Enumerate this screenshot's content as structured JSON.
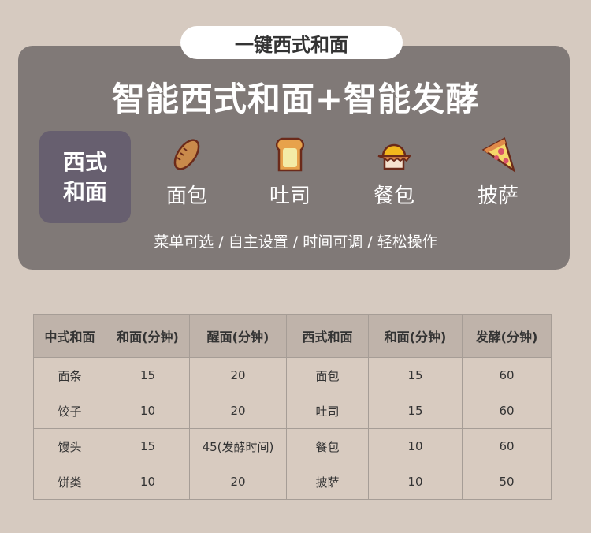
{
  "header": {
    "pill": "一键西式和面",
    "title": "智能西式和面+智能发酵"
  },
  "badge": {
    "line1": "西式",
    "line2": "和面"
  },
  "items": [
    {
      "label": "面包",
      "icon": "bread-icon"
    },
    {
      "label": "吐司",
      "icon": "toast-icon"
    },
    {
      "label": "餐包",
      "icon": "bun-icon"
    },
    {
      "label": "披萨",
      "icon": "pizza-icon"
    }
  ],
  "subtitle": "菜单可选 / 自主设置 / 时间可调 / 轻松操作",
  "table": {
    "headers": [
      "中式和面",
      "和面(分钟)",
      "醒面(分钟)",
      "西式和面",
      "和面(分钟)",
      "发酵(分钟)"
    ],
    "rows": [
      [
        "面条",
        "15",
        "20",
        "面包",
        "15",
        "60"
      ],
      [
        "饺子",
        "10",
        "20",
        "吐司",
        "15",
        "60"
      ],
      [
        "馒头",
        "15",
        "45(发酵时间)",
        "餐包",
        "10",
        "60"
      ],
      [
        "饼类",
        "10",
        "20",
        "披萨",
        "10",
        "50"
      ]
    ]
  }
}
